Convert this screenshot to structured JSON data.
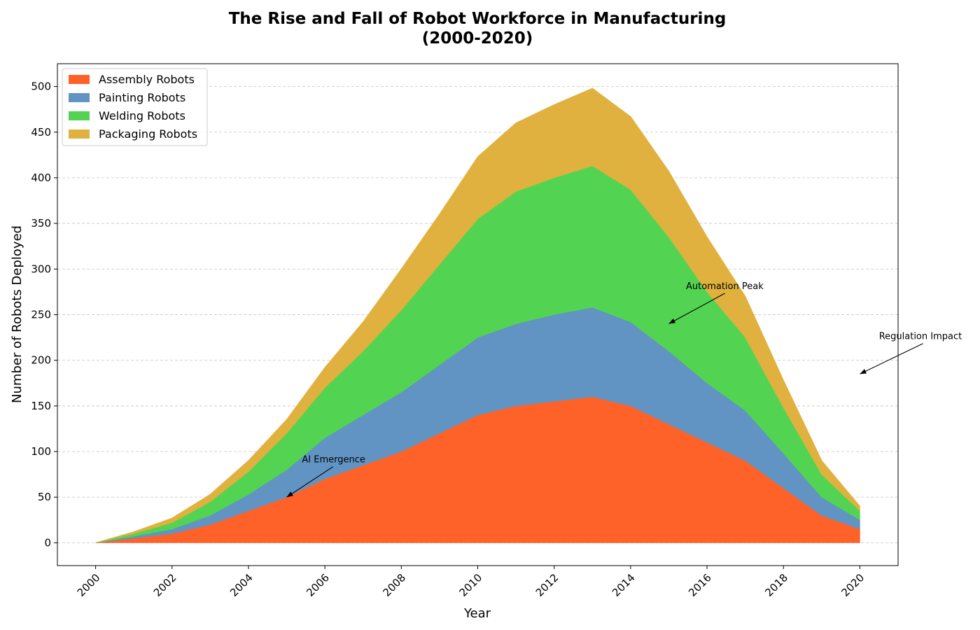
{
  "chart_data": {
    "type": "area",
    "stacked": true,
    "title_lines": [
      "The Rise and Fall of Robot Workforce in Manufacturing",
      "(2000-2020)"
    ],
    "xlabel": "Year",
    "ylabel": "Number of Robots Deployed",
    "x": [
      2000,
      2001,
      2002,
      2003,
      2004,
      2005,
      2006,
      2007,
      2008,
      2009,
      2010,
      2011,
      2012,
      2013,
      2014,
      2015,
      2016,
      2017,
      2018,
      2019,
      2020
    ],
    "xticks": [
      "2000",
      "2002",
      "2004",
      "2006",
      "2008",
      "2010",
      "2012",
      "2014",
      "2016",
      "2018",
      "2020"
    ],
    "yticks": [
      "0",
      "50",
      "100",
      "150",
      "200",
      "250",
      "300",
      "350",
      "400",
      "450",
      "500"
    ],
    "xlim": [
      1999,
      2021
    ],
    "ylim": [
      -25,
      525
    ],
    "grid": "y-dashed",
    "legend_position": "top-left",
    "series": [
      {
        "name": "Assembly Robots",
        "color": "#ff6228",
        "values": [
          0,
          5,
          10,
          20,
          35,
          50,
          70,
          85,
          100,
          120,
          140,
          150,
          155,
          160,
          150,
          130,
          110,
          90,
          60,
          30,
          15
        ]
      },
      {
        "name": "Painting Robots",
        "color": "#6194c2",
        "values": [
          0,
          2,
          5,
          10,
          18,
          30,
          45,
          55,
          65,
          75,
          85,
          90,
          95,
          98,
          92,
          80,
          65,
          55,
          38,
          20,
          10
        ]
      },
      {
        "name": "Welding Robots",
        "color": "#52d452",
        "values": [
          0,
          3,
          7,
          15,
          25,
          40,
          55,
          70,
          90,
          110,
          130,
          145,
          150,
          155,
          145,
          125,
          100,
          80,
          50,
          25,
          10
        ]
      },
      {
        "name": "Packaging Robots",
        "color": "#e0b13e",
        "values": [
          0,
          2,
          5,
          8,
          12,
          15,
          22,
          32,
          45,
          55,
          68,
          75,
          80,
          85,
          80,
          72,
          60,
          45,
          30,
          15,
          5
        ]
      }
    ],
    "annotations": [
      {
        "text": "AI Emergence",
        "x": 2005,
        "y": 50,
        "text_x": 2005.4,
        "text_y": 88
      },
      {
        "text": "Automation Peak",
        "x": 2015,
        "y": 240,
        "text_x": 2015.45,
        "text_y": 278
      },
      {
        "text": "Regulation Impact",
        "x": 2020,
        "y": 185,
        "text_x": 2020.5,
        "text_y": 223
      }
    ]
  }
}
